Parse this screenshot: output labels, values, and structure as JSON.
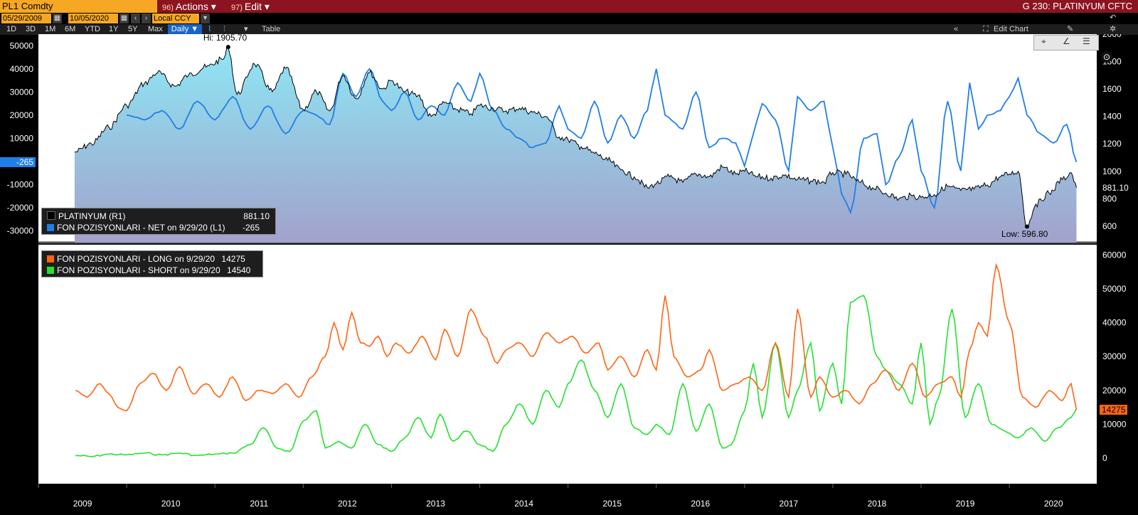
{
  "header": {
    "security": "PL1 Comdty",
    "actions": {
      "num": "96)",
      "label": "Actions ▾"
    },
    "edit": {
      "num": "97)",
      "label": "Edit ▾"
    },
    "title": "G 230: PLATINYUM CFTC",
    "start_date": "05/29/2009",
    "end_date": "10/05/2020",
    "currency": "Local CCY",
    "ranges": [
      "1D",
      "3D",
      "1M",
      "6M",
      "YTD",
      "1Y",
      "5Y",
      "Max"
    ],
    "frequency": "Daily ▼",
    "table": "Table",
    "edit_chart": "Edit Chart"
  },
  "colors": {
    "price": "#000000",
    "net": "#1f7fe8",
    "long": "#ff6414",
    "short": "#22e22e",
    "area_top": "#8ee6f4",
    "area_bottom": "#a2a2cc",
    "background": "#ffffff"
  },
  "chart_data": [
    {
      "type": "area",
      "title": "",
      "panel": "top",
      "left_axis": {
        "ticks": [
          "50000",
          "40000",
          "30000",
          "20000",
          "10000",
          "0",
          "-10000",
          "-20000",
          "-30000"
        ],
        "range": [
          -35000,
          55000
        ]
      },
      "right_axis": {
        "ticks": [
          "2000",
          "1800",
          "1600",
          "1400",
          "1200",
          "1000",
          "800",
          "600"
        ],
        "range": [
          480,
          2000
        ]
      },
      "x_ticks": [
        "2009",
        "2010",
        "2011",
        "2012",
        "2013",
        "2014",
        "2015",
        "2016",
        "2017",
        "2018",
        "2019",
        "2020"
      ],
      "hi_label": "Hi: 1905.70",
      "low_label": "Low: 596.80",
      "hi": {
        "date": 2011.15,
        "value": 1905.7
      },
      "low": {
        "date": 2020.2,
        "value": 596.8
      },
      "legend": [
        {
          "label": "PLATINYUM (R1)",
          "value": "881.10"
        },
        {
          "label": "FON POZISYONLARI - NET on 9/29/20 (L1)",
          "value": "-265"
        }
      ],
      "last_price_tag": "881.10",
      "last_net_tag": "-265",
      "series": [
        {
          "name": "PLATINYUM (R1)",
          "axis": "right",
          "x": [
            2009.41,
            2009.6,
            2009.8,
            2010.0,
            2010.2,
            2010.35,
            2010.55,
            2010.7,
            2010.9,
            2011.1,
            2011.15,
            2011.25,
            2011.45,
            2011.65,
            2011.8,
            2012.0,
            2012.15,
            2012.3,
            2012.45,
            2012.6,
            2012.75,
            2012.9,
            2013.0,
            2013.15,
            2013.3,
            2013.45,
            2013.6,
            2013.75,
            2013.9,
            2014.0,
            2014.15,
            2014.3,
            2014.45,
            2014.6,
            2014.75,
            2014.9,
            2015.0,
            2015.15,
            2015.3,
            2015.45,
            2015.6,
            2015.75,
            2015.9,
            2016.0,
            2016.15,
            2016.3,
            2016.45,
            2016.6,
            2016.75,
            2016.9,
            2017.0,
            2017.15,
            2017.3,
            2017.45,
            2017.6,
            2017.75,
            2017.9,
            2018.0,
            2018.15,
            2018.3,
            2018.45,
            2018.6,
            2018.75,
            2018.9,
            2019.0,
            2019.15,
            2019.3,
            2019.45,
            2019.6,
            2019.75,
            2019.9,
            2020.0,
            2020.1,
            2020.2,
            2020.3,
            2020.45,
            2020.6,
            2020.7,
            2020.76
          ],
          "values": [
            1140,
            1200,
            1320,
            1480,
            1640,
            1720,
            1620,
            1700,
            1760,
            1820,
            1905.7,
            1560,
            1780,
            1580,
            1750,
            1450,
            1580,
            1440,
            1700,
            1530,
            1720,
            1600,
            1660,
            1580,
            1550,
            1400,
            1500,
            1450,
            1420,
            1480,
            1460,
            1440,
            1460,
            1430,
            1400,
            1250,
            1230,
            1180,
            1130,
            1080,
            1010,
            960,
            880,
            910,
            960,
            920,
            980,
            960,
            1030,
            980,
            1000,
            960,
            950,
            970,
            940,
            930,
            920,
            990,
            980,
            920,
            880,
            840,
            800,
            820,
            810,
            830,
            890,
            860,
            870,
            900,
            960,
            980,
            1000,
            596.8,
            760,
            840,
            940,
            990,
            881.1
          ]
        },
        {
          "name": "FON POZISYONLARI - NET on 9/29/20 (L1)",
          "axis": "left",
          "x": [
            2010.0,
            2010.2,
            2010.4,
            2010.6,
            2010.8,
            2011.0,
            2011.2,
            2011.4,
            2011.6,
            2011.8,
            2012.0,
            2012.15,
            2012.3,
            2012.45,
            2012.6,
            2012.75,
            2012.9,
            2013.0,
            2013.15,
            2013.3,
            2013.45,
            2013.6,
            2013.75,
            2013.9,
            2014.0,
            2014.15,
            2014.3,
            2014.45,
            2014.6,
            2014.75,
            2014.9,
            2015.0,
            2015.15,
            2015.3,
            2015.45,
            2015.6,
            2015.75,
            2015.9,
            2016.0,
            2016.1,
            2016.3,
            2016.45,
            2016.6,
            2016.75,
            2016.9,
            2017.0,
            2017.1,
            2017.2,
            2017.35,
            2017.5,
            2017.6,
            2017.75,
            2017.9,
            2018.0,
            2018.1,
            2018.2,
            2018.35,
            2018.5,
            2018.6,
            2018.75,
            2018.9,
            2019.0,
            2019.15,
            2019.3,
            2019.45,
            2019.55,
            2019.65,
            2019.75,
            2019.9,
            2020.0,
            2020.1,
            2020.2,
            2020.35,
            2020.5,
            2020.65,
            2020.76
          ],
          "values": [
            20000,
            18000,
            22000,
            14000,
            26000,
            18000,
            28000,
            14000,
            24000,
            12000,
            22000,
            20000,
            16000,
            38000,
            28000,
            40000,
            26000,
            22000,
            30000,
            18000,
            24000,
            20000,
            34000,
            26000,
            38000,
            22000,
            14000,
            10000,
            6000,
            8000,
            24000,
            14000,
            10000,
            26000,
            8000,
            20000,
            10000,
            22000,
            40000,
            20000,
            14000,
            30000,
            6000,
            10000,
            8000,
            -2000,
            12000,
            25000,
            18000,
            -4000,
            28000,
            22000,
            26000,
            6000,
            -14000,
            -22000,
            10000,
            12000,
            -10000,
            2000,
            18000,
            -4000,
            -20000,
            26000,
            -4000,
            34000,
            14000,
            20000,
            22000,
            28000,
            36000,
            20000,
            12000,
            8000,
            16000,
            -265
          ]
        }
      ]
    },
    {
      "type": "line",
      "title": "",
      "panel": "bottom",
      "right_axis": {
        "ticks": [
          "60000",
          "50000",
          "40000",
          "30000",
          "20000",
          "10000",
          "0"
        ],
        "range": [
          -5000,
          63000
        ]
      },
      "legend": [
        {
          "label": "FON POZISYONLARI - LONG on 9/29/20",
          "value": "14275"
        },
        {
          "label": "FON POZISYONLARI - SHORT on 9/29/20",
          "value": "14540"
        }
      ],
      "last_long_tag": "14275",
      "series": [
        {
          "name": "FON POZISYONLARI - LONG on 9/29/20",
          "x": [
            2009.42,
            2009.55,
            2009.7,
            2009.8,
            2009.9,
            2010.0,
            2010.15,
            2010.3,
            2010.45,
            2010.6,
            2010.75,
            2010.9,
            2011.05,
            2011.2,
            2011.35,
            2011.5,
            2011.65,
            2011.8,
            2011.95,
            2012.1,
            2012.25,
            2012.35,
            2012.45,
            2012.55,
            2012.65,
            2012.75,
            2012.85,
            2012.95,
            2013.05,
            2013.2,
            2013.35,
            2013.5,
            2013.6,
            2013.75,
            2013.9,
            2014.05,
            2014.2,
            2014.3,
            2014.45,
            2014.6,
            2014.75,
            2014.9,
            2015.05,
            2015.2,
            2015.35,
            2015.45,
            2015.6,
            2015.75,
            2015.9,
            2016.0,
            2016.1,
            2016.2,
            2016.35,
            2016.5,
            2016.6,
            2016.75,
            2016.9,
            2017.05,
            2017.2,
            2017.35,
            2017.5,
            2017.6,
            2017.75,
            2017.85,
            2018.0,
            2018.15,
            2018.3,
            2018.45,
            2018.6,
            2018.75,
            2018.9,
            2019.05,
            2019.2,
            2019.35,
            2019.45,
            2019.55,
            2019.65,
            2019.75,
            2019.85,
            2020.0,
            2020.15,
            2020.3,
            2020.45,
            2020.6,
            2020.7,
            2020.76
          ],
          "values": [
            20000,
            18000,
            22000,
            19000,
            15000,
            14000,
            22000,
            25000,
            20000,
            27000,
            19000,
            22000,
            18000,
            24000,
            17000,
            20000,
            19000,
            22000,
            18000,
            24000,
            30000,
            40000,
            32000,
            43000,
            34000,
            33000,
            36000,
            30000,
            34000,
            31000,
            36000,
            29000,
            38000,
            30000,
            44000,
            36000,
            28000,
            32000,
            34000,
            30000,
            37000,
            34000,
            36000,
            31000,
            34000,
            26000,
            30000,
            24000,
            32000,
            26000,
            48000,
            30000,
            24000,
            26000,
            32000,
            20000,
            22000,
            24000,
            20000,
            34000,
            18000,
            44000,
            18000,
            24000,
            18000,
            20000,
            16000,
            22000,
            26000,
            20000,
            28000,
            18000,
            22000,
            24000,
            18000,
            32000,
            40000,
            36000,
            57000,
            40000,
            18000,
            15000,
            20000,
            17000,
            22000,
            14275
          ]
        },
        {
          "name": "FON POZISYONLARI - SHORT on 9/29/20",
          "x": [
            2009.42,
            2009.6,
            2009.8,
            2010.0,
            2010.2,
            2010.4,
            2010.6,
            2010.8,
            2011.0,
            2011.2,
            2011.4,
            2011.55,
            2011.7,
            2011.85,
            2012.0,
            2012.15,
            2012.25,
            2012.4,
            2012.55,
            2012.7,
            2012.85,
            2013.0,
            2013.15,
            2013.3,
            2013.45,
            2013.55,
            2013.7,
            2013.85,
            2014.0,
            2014.15,
            2014.3,
            2014.45,
            2014.6,
            2014.75,
            2014.9,
            2015.0,
            2015.15,
            2015.3,
            2015.45,
            2015.6,
            2015.75,
            2015.9,
            2016.0,
            2016.15,
            2016.3,
            2016.45,
            2016.6,
            2016.75,
            2016.85,
            2017.0,
            2017.1,
            2017.2,
            2017.35,
            2017.5,
            2017.6,
            2017.75,
            2017.85,
            2018.0,
            2018.1,
            2018.2,
            2018.35,
            2018.5,
            2018.6,
            2018.75,
            2018.9,
            2019.0,
            2019.1,
            2019.2,
            2019.35,
            2019.5,
            2019.65,
            2019.8,
            2019.95,
            2020.1,
            2020.25,
            2020.4,
            2020.55,
            2020.7,
            2020.76
          ],
          "values": [
            800,
            500,
            1200,
            1000,
            1500,
            1000,
            1500,
            800,
            1200,
            1500,
            4000,
            9000,
            3000,
            2000,
            11000,
            14000,
            3000,
            5000,
            3000,
            10000,
            4000,
            2000,
            6000,
            12000,
            6000,
            13000,
            5000,
            8000,
            4000,
            2000,
            10000,
            16000,
            10000,
            20000,
            15000,
            22000,
            29000,
            20000,
            12000,
            22000,
            9000,
            7000,
            10000,
            7000,
            22000,
            8000,
            16000,
            3000,
            4000,
            14000,
            28000,
            12000,
            34000,
            12000,
            20000,
            34000,
            14000,
            28000,
            16000,
            46000,
            48000,
            30000,
            26000,
            22000,
            16000,
            34000,
            10000,
            18000,
            44000,
            12000,
            22000,
            10000,
            8000,
            6000,
            9000,
            5000,
            9000,
            12000,
            14540
          ]
        }
      ]
    }
  ]
}
